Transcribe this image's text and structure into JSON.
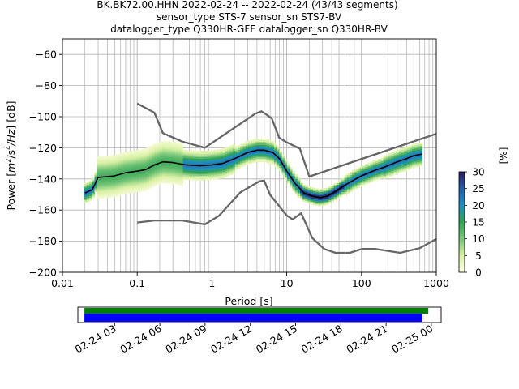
{
  "title": {
    "line1": "BK.BK72.00.HHN   2022-02-24 -- 2022-02-24  (43/43 segments)",
    "line2": "sensor_type STS-7 sensor_sn STS7-BV",
    "line3": "datalogger_type Q330HR-GFE datalogger_sn Q330HR-BV"
  },
  "axes": {
    "xlabel": "Period [s]",
    "ylabel_main": "Power [",
    "ylabel_sup_unit": "m",
    "ylabel_rest": "/s",
    "ylabel_hz": "/Hz] [dB]",
    "x_ticks": [
      {
        "value": 0.01,
        "label": "0.01"
      },
      {
        "value": 0.1,
        "label": "0.1"
      },
      {
        "value": 1,
        "label": "1"
      },
      {
        "value": 10,
        "label": "10"
      },
      {
        "value": 100,
        "label": "100"
      },
      {
        "value": 1000,
        "label": "1000"
      }
    ],
    "y_ticks": [
      {
        "value": -60,
        "label": "−60"
      },
      {
        "value": -80,
        "label": "−80"
      },
      {
        "value": -100,
        "label": "−100"
      },
      {
        "value": -120,
        "label": "−120"
      },
      {
        "value": -140,
        "label": "−140"
      },
      {
        "value": -160,
        "label": "−160"
      },
      {
        "value": -180,
        "label": "−180"
      },
      {
        "value": -200,
        "label": "−200"
      }
    ]
  },
  "colorbar": {
    "label": "[%]",
    "ticks": [
      {
        "value": 0,
        "label": "0"
      },
      {
        "value": 5,
        "label": "5"
      },
      {
        "value": 10,
        "label": "10"
      },
      {
        "value": 15,
        "label": "15"
      },
      {
        "value": 20,
        "label": "20"
      },
      {
        "value": 25,
        "label": "25"
      },
      {
        "value": 30,
        "label": "30"
      }
    ],
    "colors": [
      "#ffffe5",
      "#d9f0a3",
      "#78c679",
      "#31a354",
      "#1d91c0",
      "#225ea8",
      "#2c1b5c"
    ]
  },
  "timeline": {
    "labels": [
      "02-24 03",
      "02-24 06",
      "02-24 09",
      "02-24 12",
      "02-24 15",
      "02-24 18",
      "02-24 21",
      "02-25 00"
    ],
    "hours": [
      3,
      6,
      9,
      12,
      15,
      18,
      21,
      24
    ],
    "bar_data_color": "#008000",
    "bar_used_color": "#0000ff",
    "data_span_hours": [
      1.0,
      23.8
    ],
    "used_span_hours": [
      1.0,
      23.4
    ]
  },
  "chart_data": {
    "type": "line",
    "xlabel": "Period [s]",
    "ylabel": "Power [m^2/s^4/Hz] [dB]",
    "x_scale": "log",
    "xlim": [
      0.01,
      1000
    ],
    "ylim": [
      -200,
      -50
    ],
    "grid": true,
    "colorbar_range": [
      0,
      30
    ],
    "series": [
      {
        "style": "mean",
        "color": "#000000",
        "x": [
          0.02,
          0.025,
          0.03,
          0.04,
          0.05,
          0.07,
          0.1,
          0.13,
          0.17,
          0.22,
          0.3,
          0.45,
          0.7,
          1.0,
          1.4,
          2.0,
          3.0,
          4.0,
          5.0,
          6.5,
          8.0,
          10.0,
          13.0,
          17.0,
          22.0,
          28.0,
          35.0,
          45.0,
          60.0,
          80.0,
          100.0,
          150.0,
          200.0,
          300.0,
          400.0,
          500.0,
          650.0
        ],
        "y": [
          -149,
          -147,
          -139,
          -138.5,
          -138,
          -136,
          -135,
          -134,
          -131,
          -129,
          -129.5,
          -131,
          -131.5,
          -131,
          -130,
          -127,
          -123,
          -121.5,
          -121.5,
          -123,
          -127,
          -135,
          -143,
          -149,
          -151,
          -152,
          -151,
          -148,
          -144,
          -140.5,
          -138,
          -134.5,
          -132.5,
          -129,
          -127,
          -125,
          -124
        ]
      },
      {
        "style": "noise-model-high",
        "color": "#666666",
        "x": [
          0.1,
          0.17,
          0.22,
          0.4,
          0.8,
          3.8,
          4.6,
          6.3,
          7.9,
          10,
          15,
          20,
          1000
        ],
        "y": [
          -91.5,
          -97.4,
          -110.5,
          -116,
          -120,
          -98,
          -96.5,
          -101,
          -113.5,
          -116.5,
          -120.5,
          -138.5,
          -111
        ]
      },
      {
        "style": "noise-model-low",
        "color": "#666666",
        "x": [
          0.1,
          0.17,
          0.4,
          0.8,
          1.24,
          2.4,
          4.3,
          5.0,
          6.0,
          10.0,
          12.0,
          15.6,
          21.9,
          31.6,
          45.0,
          70.0,
          101.0,
          154.0,
          328.0,
          600.0,
          1000.0
        ],
        "y": [
          -168,
          -166.7,
          -166.7,
          -169.2,
          -163.7,
          -148.6,
          -141.5,
          -141.1,
          -150.2,
          -163.5,
          -166,
          -162,
          -177.9,
          -185,
          -187.5,
          -187.5,
          -185,
          -185,
          -187.5,
          -184.5,
          -178.6
        ]
      }
    ]
  }
}
